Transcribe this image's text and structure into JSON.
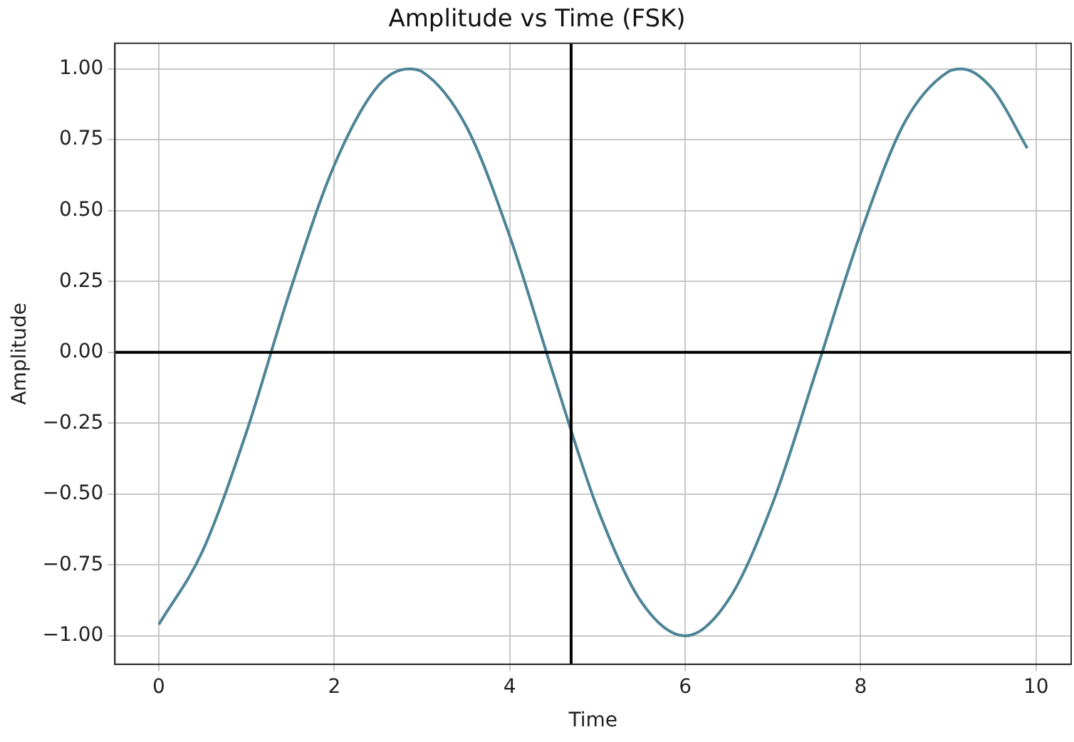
{
  "chart_data": {
    "type": "line",
    "title": "Amplitude vs Time (FSK)",
    "xlabel": "Time",
    "ylabel": "Amplitude",
    "x": [
      0,
      0.5,
      1,
      1.5,
      2,
      2.5,
      2.85,
      3,
      3.5,
      4,
      4.5,
      5,
      5.5,
      6,
      6.5,
      7,
      7.5,
      8,
      8.5,
      9,
      9.15,
      9.5,
      9.9
    ],
    "series": [
      {
        "color": "#4d8496",
        "values": [
          -0.96,
          -0.7,
          -0.28,
          0.22,
          0.66,
          0.94,
          1,
          0.99,
          0.8,
          0.41,
          -0.08,
          -0.55,
          -0.88,
          -1,
          -0.87,
          -0.53,
          -0.06,
          0.42,
          0.81,
          0.99,
          1,
          0.93,
          0.72
        ]
      }
    ],
    "xlim": [
      -0.5,
      10.4
    ],
    "ylim": [
      -1.1,
      1.09
    ],
    "xticks": [
      0,
      2,
      4,
      6,
      8,
      10
    ],
    "yticks": [
      {
        "value": -1,
        "label": "−1.00"
      },
      {
        "value": -0.75,
        "label": "−0.75"
      },
      {
        "value": -0.5,
        "label": "−0.50"
      },
      {
        "value": -0.25,
        "label": "−0.25"
      },
      {
        "value": 0,
        "label": "0.00"
      },
      {
        "value": 0.25,
        "label": "0.25"
      },
      {
        "value": 0.5,
        "label": "0.50"
      },
      {
        "value": 0.75,
        "label": "0.75"
      },
      {
        "value": 1,
        "label": "1.00"
      }
    ],
    "ref_lines": [
      {
        "axis": "y",
        "value": 0,
        "color": "#000000"
      },
      {
        "axis": "x",
        "value": 4.7,
        "color": "#000000"
      }
    ],
    "grid": true,
    "legend": false,
    "marker": "none",
    "line_style": "solid"
  }
}
